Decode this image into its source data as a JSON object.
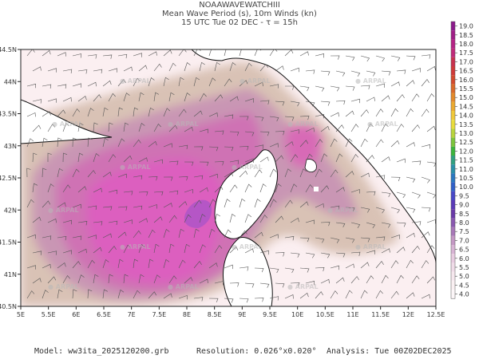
{
  "header": {
    "line1": "NOAAWAVEWATCHIII",
    "line2": "Mean Wave Period (s), 10m Winds (kn)",
    "line3": "15 UTC Tue 02 DEC  -  τ = 15h"
  },
  "map": {
    "lon_range": [
      5,
      12.5
    ],
    "lat_range": [
      40.5,
      44.5
    ],
    "x_ticks": [
      "5E",
      "5.5E",
      "6E",
      "6.5E",
      "7E",
      "7.5E",
      "8E",
      "8.5E",
      "9E",
      "9.5E",
      "10E",
      "10.5E",
      "11E",
      "11.5E",
      "12E",
      "12.5E"
    ],
    "y_ticks": [
      "40.5N",
      "41N",
      "41.5N",
      "42N",
      "42.5N",
      "43N",
      "43.5N",
      "44N",
      "44.5N"
    ],
    "watermark": "ARPAL",
    "colors": {
      "land": "#ffffff",
      "coast": "#111111",
      "wind_barb": "#555555"
    }
  },
  "colorbar": {
    "labels": [
      "19.0",
      "18.5",
      "18.0",
      "17.5",
      "17.0",
      "16.5",
      "16.0",
      "15.5",
      "15.0",
      "14.5",
      "14.0",
      "13.5",
      "13.0",
      "12.5",
      "12.0",
      "11.5",
      "11.0",
      "10.5",
      "10.0",
      "9.5",
      "9.0",
      "8.5",
      "8.0",
      "7.5",
      "7.0",
      "6.5",
      "6.0",
      "5.5",
      "5.0",
      "4.5",
      "4.0"
    ],
    "colors": [
      "#8b1a8b",
      "#a01e87",
      "#b52385",
      "#c02a7a",
      "#c8324f",
      "#cf3a3a",
      "#d24a2e",
      "#d96a2a",
      "#e38a2a",
      "#ebaa30",
      "#f0c83a",
      "#e8dc3c",
      "#b8d43c",
      "#7cc43c",
      "#3cb43c",
      "#30a080",
      "#2a90a8",
      "#2a78c0",
      "#3060c8",
      "#4848c8",
      "#5a3ab8",
      "#6a3aa8",
      "#8a58b0",
      "#a878b8",
      "#c498c4",
      "#d8b4d4",
      "#e8cce0",
      "#f0dce8",
      "#f6e8ee",
      "#faf0f2",
      "#fcf6f8"
    ]
  },
  "footer": {
    "model": "Model: ww3ita_2025120200.grb",
    "resolution": "Resolution: 0.026°x0.020°",
    "analysis": "Analysis: Tue 00Z02DEC2025"
  }
}
